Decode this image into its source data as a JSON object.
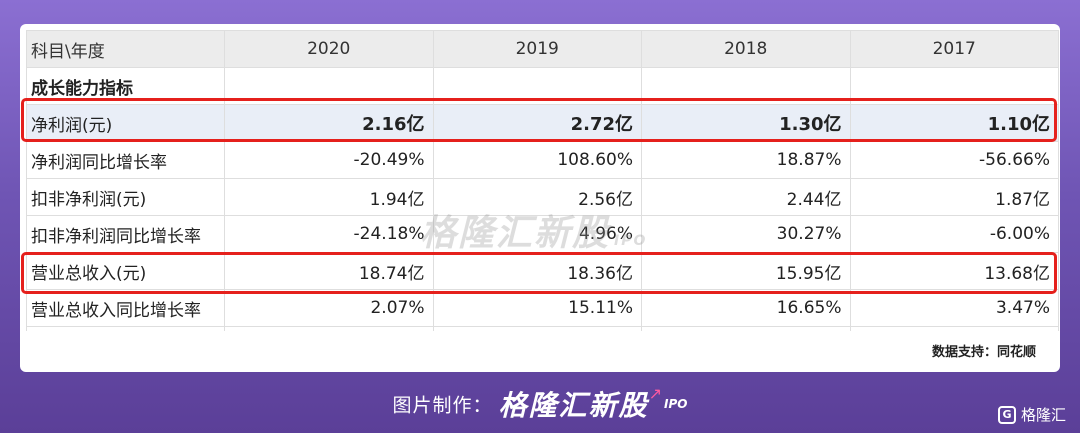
{
  "table": {
    "header": [
      "科目\\年度",
      "2020",
      "2019",
      "2018",
      "2017"
    ],
    "section": "成长能力指标",
    "rows": [
      {
        "label": "净利润(元)",
        "values": [
          "2.16亿",
          "2.72亿",
          "1.30亿",
          "1.10亿"
        ],
        "highlight": true
      },
      {
        "label": "净利润同比增长率",
        "values": [
          "-20.49%",
          "108.60%",
          "18.87%",
          "-56.66%"
        ]
      },
      {
        "label": "扣非净利润(元)",
        "values": [
          "1.94亿",
          "2.56亿",
          "2.44亿",
          "1.87亿"
        ]
      },
      {
        "label": "扣非净利润同比增长率",
        "values": [
          "-24.18%",
          "4.96%",
          "30.27%",
          "-6.00%"
        ]
      },
      {
        "label": "营业总收入(元)",
        "values": [
          "18.74亿",
          "18.36亿",
          "15.95亿",
          "13.68亿"
        ],
        "boxed": true
      },
      {
        "label": "营业总收入同比增长率",
        "values": [
          "2.07%",
          "15.11%",
          "16.65%",
          "3.47%"
        ]
      }
    ]
  },
  "source": "数据支持：同花顺",
  "watermark": {
    "text": "格隆汇新股",
    "sub": "IPO"
  },
  "credit": {
    "label": "图片制作：",
    "brand": "格隆汇新股",
    "sub": "IPO"
  },
  "logo": {
    "mark": "G",
    "text": "格隆汇"
  },
  "colors": {
    "highlight_box": "#e5201c",
    "highlight_row": "#e9eef7",
    "header_bg": "#ececec",
    "background": "#7a5cc0"
  }
}
